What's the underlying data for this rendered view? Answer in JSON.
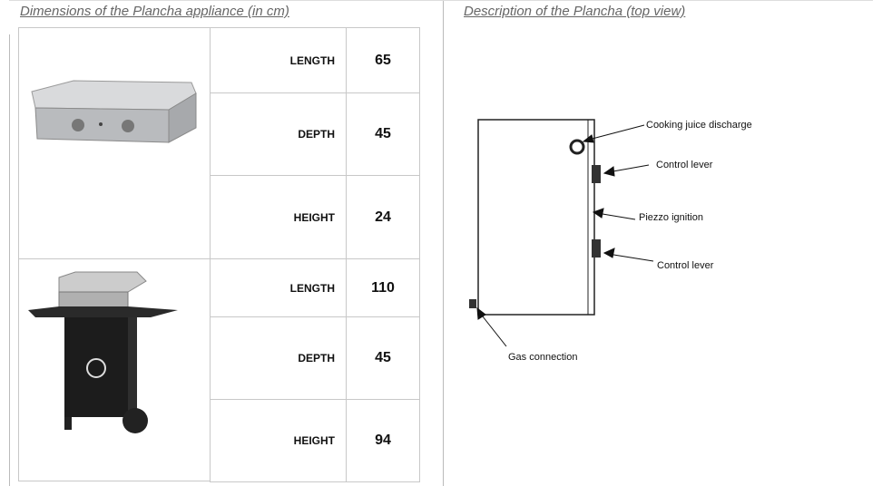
{
  "header": {
    "left_title": "Dimensions of the Plancha appliance (in cm)",
    "right_title": "Description of the Plancha (top view)"
  },
  "table": {
    "rows": [
      [
        "LENGTH",
        65
      ],
      [
        "DEPTH",
        45
      ],
      [
        "HEIGHT",
        24
      ],
      [
        "LENGTH",
        110
      ],
      [
        "DEPTH",
        45
      ],
      [
        "HEIGHT",
        94
      ]
    ]
  },
  "diagram": {
    "labels": [
      "Cooking juice discharge",
      "Control lever",
      "Piezzo ignition",
      "Control lever",
      "Gas connection"
    ]
  }
}
